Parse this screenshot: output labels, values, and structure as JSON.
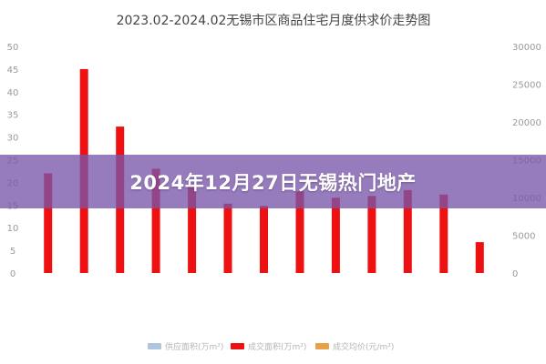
{
  "overlay": {
    "headline": "2024年12月27日无锡热门地产"
  },
  "colors": {
    "bar": "#ee1111",
    "overlay": "#7856aa",
    "legend_supply": "#b0c4de",
    "legend_price": "#e8a04a"
  },
  "chart_data": {
    "type": "bar",
    "title": "2023.02-2024.02无锡市区商品住宅月度供求价走势图",
    "categories": [
      "",
      "",
      "",
      "",
      "",
      "",
      "",
      "",
      "",
      "",
      "",
      "",
      ""
    ],
    "series": [
      {
        "name": "成交面积(万m²)",
        "values": [
          22,
          45,
          32.3,
          23,
          19,
          15.3,
          14.8,
          18,
          16.6,
          17,
          18.3,
          17.3,
          6.8
        ]
      }
    ],
    "y_left": {
      "ticks": [
        "0",
        "5",
        "10",
        "15",
        "20",
        "25",
        "30",
        "35",
        "40",
        "45",
        "50"
      ],
      "ylim": [
        0,
        50
      ]
    },
    "y_right": {
      "ticks": [
        "0",
        "5000",
        "10000",
        "15000",
        "20000",
        "25000",
        "30000"
      ],
      "ylim": [
        0,
        30000
      ]
    },
    "legend": {
      "position": "bottom",
      "items": [
        {
          "label": "供应面积(万m²)",
          "color": "#b0c4de"
        },
        {
          "label": "成交面积(万m²)",
          "color": "#ee1111"
        },
        {
          "label": "成交均价(元/m²)",
          "color": "#e8a04a"
        }
      ]
    },
    "grid": false
  }
}
